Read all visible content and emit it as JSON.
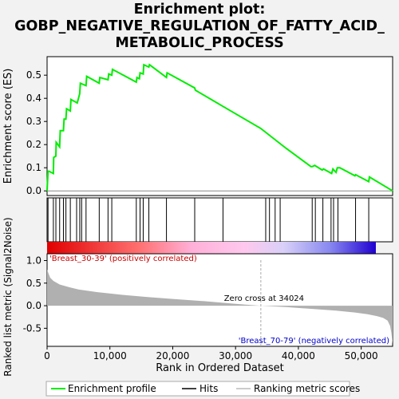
{
  "title_lines": [
    "Enrichment plot:",
    "GOBP_NEGATIVE_REGULATION_OF_FATTY_ACID_",
    "METABOLIC_PROCESS"
  ],
  "chart_data": [
    {
      "type": "line",
      "panel": "enrichment",
      "ylabel": "Enrichment score (ES)",
      "ylim": [
        -0.02,
        0.58
      ],
      "yticks": [
        "0.0",
        "0.1",
        "0.2",
        "0.3",
        "0.4",
        "0.5"
      ],
      "ytick_values": [
        0.0,
        0.1,
        0.2,
        0.3,
        0.4,
        0.5
      ],
      "xlim": [
        0,
        55000
      ],
      "series": [
        {
          "name": "Enrichment profile",
          "color": "#00ee00",
          "x": [
            0,
            150,
            300,
            1000,
            1050,
            1400,
            1450,
            2000,
            2100,
            2600,
            2700,
            3000,
            3100,
            3700,
            3800,
            4800,
            5200,
            5300,
            6200,
            6300,
            8300,
            8400,
            9700,
            9800,
            10300,
            10400,
            14200,
            14300,
            14700,
            14800,
            15300,
            15400,
            16200,
            16300,
            19000,
            19100,
            23500,
            23600,
            28000,
            34000,
            38000,
            42000,
            42200,
            42600,
            43800,
            44000,
            45300,
            45500,
            46000,
            46200,
            46400,
            46600,
            49000,
            49100,
            51200,
            51300,
            55000
          ],
          "y": [
            0.0,
            0.085,
            0.085,
            0.075,
            0.145,
            0.15,
            0.21,
            0.19,
            0.26,
            0.26,
            0.31,
            0.31,
            0.355,
            0.345,
            0.395,
            0.38,
            0.42,
            0.465,
            0.455,
            0.495,
            0.465,
            0.49,
            0.48,
            0.505,
            0.5,
            0.525,
            0.47,
            0.49,
            0.485,
            0.51,
            0.505,
            0.545,
            0.535,
            0.545,
            0.49,
            0.51,
            0.445,
            0.435,
            0.365,
            0.27,
            0.185,
            0.105,
            0.105,
            0.11,
            0.09,
            0.095,
            0.075,
            0.095,
            0.08,
            0.1,
            0.1,
            0.1,
            0.065,
            0.07,
            0.04,
            0.06,
            0.0
          ]
        }
      ]
    },
    {
      "type": "hits",
      "panel": "hits",
      "name": "Hits",
      "color": "#000000",
      "positions": [
        150,
        1000,
        1400,
        2000,
        2600,
        3000,
        3700,
        4700,
        5200,
        5500,
        6200,
        8300,
        9700,
        10300,
        14200,
        14800,
        15300,
        16200,
        19000,
        23500,
        28000,
        34800,
        35400,
        36300,
        37100,
        42200,
        42700,
        43900,
        45200,
        45600,
        46300,
        49100,
        51200
      ]
    },
    {
      "type": "area",
      "panel": "ranking",
      "name": "Ranking metric scores",
      "ylabel": "Ranked list metric (Signal2Noise)",
      "xlabel": "Rank in Ordered Dataset",
      "ylim": [
        -0.9,
        1.15
      ],
      "yticks": [
        "-0.5",
        "0.0",
        "0.5",
        "1.0"
      ],
      "ytick_values": [
        -0.5,
        0.0,
        0.5,
        1.0
      ],
      "xlim": [
        0,
        55000
      ],
      "xticks": [
        "0",
        "10,000",
        "20,000",
        "30,000",
        "40,000",
        "50,000"
      ],
      "xtick_values": [
        0,
        10000,
        20000,
        30000,
        40000,
        50000
      ],
      "x": [
        0,
        200,
        500,
        1000,
        2000,
        3500,
        5000,
        8000,
        12000,
        16000,
        20000,
        25000,
        30000,
        34024,
        38000,
        42000,
        46000,
        49000,
        51000,
        52500,
        53500,
        54200,
        54600,
        54800,
        55000
      ],
      "values": [
        0.8,
        0.72,
        0.62,
        0.55,
        0.47,
        0.41,
        0.36,
        0.3,
        0.24,
        0.19,
        0.15,
        0.1,
        0.04,
        0.0,
        -0.03,
        -0.07,
        -0.11,
        -0.15,
        -0.19,
        -0.23,
        -0.27,
        -0.33,
        -0.45,
        -0.6,
        -0.85
      ],
      "zero_cross": 34024,
      "zero_cross_label": "Zero cross at 34024",
      "positive_label": "'Breast_30-39' (positively correlated)",
      "negative_label": "'Breast_70-79' (negatively correlated)"
    }
  ],
  "legend": {
    "enrichment": "Enrichment profile",
    "hits": "Hits",
    "ranking": "Ranking metric scores"
  },
  "colors": {
    "enrichment_line": "#00ee00",
    "positive_bar": "#ff0000",
    "negative_bar": "#0000ff",
    "metric_fill": "#b0b0b0",
    "positive_label": "#cc0000",
    "negative_label": "#0000cc"
  }
}
